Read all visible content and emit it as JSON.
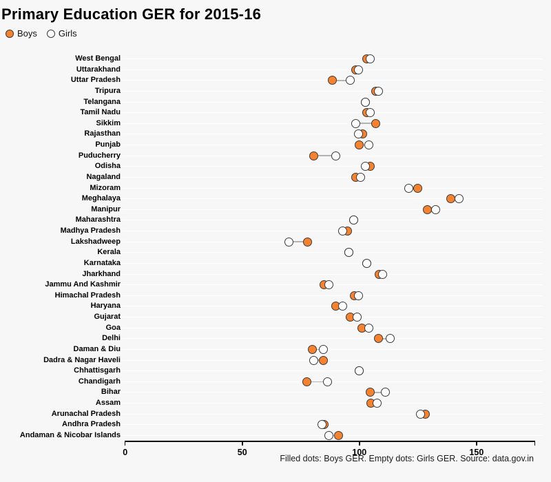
{
  "header": {
    "title": "Primary Education GER for 2015-16",
    "legend": [
      {
        "label": "Boys",
        "marker": "filled-dot"
      },
      {
        "label": "Girls",
        "marker": "empty-dot"
      }
    ]
  },
  "footer": {
    "caption": "Filled dots: Boys GER. Empty dots: Girls GER. Source: data.gov.in"
  },
  "colors": {
    "boys_fill": "#F58230",
    "girls_fill": "#FFFFFF",
    "dot_stroke": "#3A3A3A",
    "connector": "#B3B3B3",
    "background": "#F7F7F7",
    "gridline": "#FFFFFF",
    "axis": "#000000"
  },
  "chart_data": {
    "type": "scatter",
    "subtype": "horizontal-dot-plot",
    "title": "Primary Education GER for 2015-16",
    "xlabel": "",
    "ylabel": "",
    "xlim": [
      0,
      175
    ],
    "x_ticks": [
      0,
      50,
      100,
      150
    ],
    "grid": "horizontal-only",
    "legend_position": "top-left",
    "legend_entries": [
      "Boys",
      "Girls"
    ],
    "categories": [
      "West Bengal",
      "Uttarakhand",
      "Uttar Pradesh",
      "Tripura",
      "Telangana",
      "Tamil Nadu",
      "Sikkim",
      "Rajasthan",
      "Punjab",
      "Puducherry",
      "Odisha",
      "Nagaland",
      "Mizoram",
      "Meghalaya",
      "Manipur",
      "Maharashtra",
      "Madhya Pradesh",
      "Lakshadweep",
      "Kerala",
      "Karnataka",
      "Jharkhand",
      "Jammu And Kashmir",
      "Himachal Pradesh",
      "Haryana",
      "Gujarat",
      "Goa",
      "Delhi",
      "Daman & Diu",
      "Dadra & Nagar Haveli",
      "Chhattisgarh",
      "Chandigarh",
      "Bihar",
      "Assam",
      "Arunachal Pradesh",
      "Andhra Pradesh",
      "Andaman & Nicobar Islands"
    ],
    "series": [
      {
        "name": "Boys",
        "values": [
          103,
          98.5,
          88.5,
          107,
          102.5,
          103,
          107,
          101.5,
          100,
          80.5,
          104.5,
          98.5,
          125,
          139,
          129,
          97.5,
          95,
          78,
          95.5,
          103,
          108.5,
          85,
          98,
          90,
          96,
          101,
          108,
          80,
          84.5,
          100,
          77.5,
          104.5,
          105,
          128,
          85,
          91
        ]
      },
      {
        "name": "Girls",
        "values": [
          104.5,
          99.5,
          96,
          108,
          102.5,
          104.5,
          98.5,
          99.5,
          104,
          90,
          102.5,
          100.5,
          121,
          142.5,
          132.5,
          97.5,
          93,
          70,
          95.5,
          103,
          110,
          87,
          99.5,
          93,
          99,
          104,
          113,
          84.5,
          80.5,
          100,
          86.5,
          111,
          107.5,
          126,
          84,
          87
        ]
      }
    ]
  }
}
